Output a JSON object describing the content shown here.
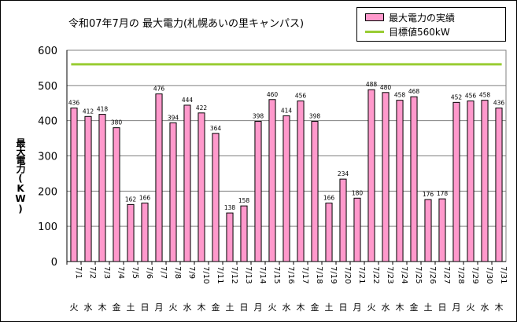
{
  "chart_data": {
    "type": "bar",
    "title": "令和07年7月の 最大電力(札幌あいの里キャンパス)",
    "ylabel": "最大電力(KW)",
    "ylim": [
      0,
      600
    ],
    "yticks": [
      0,
      100,
      200,
      300,
      400,
      500,
      600
    ],
    "grid": true,
    "legend_position": "top-right",
    "categories": [
      "7/1",
      "7/2",
      "7/3",
      "7/4",
      "7/5",
      "7/6",
      "7/7",
      "7/8",
      "7/9",
      "7/10",
      "7/11",
      "7/12",
      "7/13",
      "7/14",
      "7/15",
      "7/16",
      "7/17",
      "7/18",
      "7/19",
      "7/20",
      "7/21",
      "7/22",
      "7/23",
      "7/24",
      "7/25",
      "7/26",
      "7/27",
      "7/28",
      "7/29",
      "7/30",
      "7/31"
    ],
    "weekdays": [
      "火",
      "水",
      "木",
      "金",
      "土",
      "日",
      "月",
      "火",
      "水",
      "木",
      "金",
      "土",
      "日",
      "月",
      "火",
      "水",
      "木",
      "金",
      "土",
      "日",
      "月",
      "火",
      "水",
      "木",
      "金",
      "土",
      "日",
      "月",
      "火",
      "水",
      "木"
    ],
    "series": [
      {
        "name": "最大電力の実績",
        "color": "#ff99cc",
        "values": [
          436,
          412,
          418,
          380,
          162,
          166,
          476,
          394,
          444,
          422,
          364,
          138,
          158,
          398,
          460,
          414,
          456,
          398,
          166,
          234,
          180,
          488,
          480,
          458,
          468,
          176,
          178,
          452,
          456,
          458,
          436
        ]
      }
    ],
    "target": {
      "name": "目標値560kW",
      "value": 560,
      "color": "#99cc33"
    }
  }
}
